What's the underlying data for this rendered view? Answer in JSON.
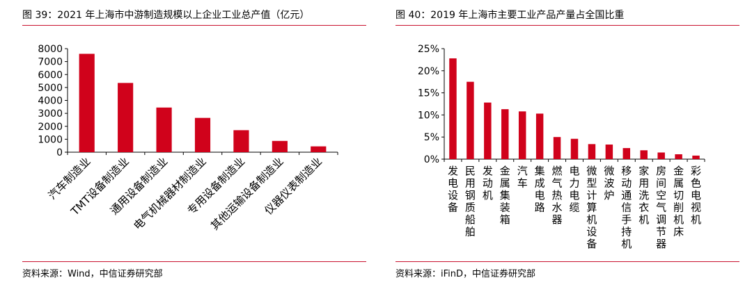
{
  "colors": {
    "bar": "#d0021b",
    "rule": "#c8102e",
    "axis": "#000000"
  },
  "figures": [
    {
      "title": "图 39：2021 年上海市中游制造规模以上企业工业总产值（亿元）",
      "source": "资料来源：Wind，中信证券研究部"
    },
    {
      "title": "图 40：2019 年上海市主要工业产品产量占全国比重",
      "source": "资料来源：iFinD，中信证券研究部"
    }
  ],
  "chart_data": [
    {
      "type": "bar",
      "title": "图 39：2021 年上海市中游制造规模以上企业工业总产值（亿元）",
      "categories": [
        "汽车制造业",
        "TMT设备制造业",
        "通用设备制造业",
        "电气机械器材制造业",
        "专用设备制造业",
        "其他运输设备制造业",
        "仪器仪表制造业"
      ],
      "values": [
        7600,
        5350,
        3450,
        2650,
        1700,
        870,
        450
      ],
      "yticks": [
        "0",
        "1000",
        "2000",
        "3000",
        "4000",
        "5000",
        "6000",
        "7000",
        "8000"
      ],
      "ylim": [
        0,
        8000
      ],
      "label_style": "rotated-45",
      "grid": false,
      "legend": "none"
    },
    {
      "type": "bar",
      "title": "图 40：2019 年上海市主要工业产品产量占全国比重",
      "categories": [
        "发电设备",
        "民用钢质船舶",
        "发动机",
        "金属集装箱",
        "汽车",
        "集成电路",
        "燃气热水器",
        "电力电缆",
        "微型计算机设备",
        "微波炉",
        "移动通信手持机",
        "家用洗衣机",
        "房间空气调节器",
        "金属切削机床",
        "彩色电视机"
      ],
      "values": [
        22.8,
        17.5,
        12.8,
        11.3,
        10.8,
        10.3,
        5.0,
        4.6,
        3.4,
        3.3,
        2.5,
        2.0,
        1.5,
        1.1,
        0.8
      ],
      "yticks": [
        "0%",
        "5%",
        "10%",
        "15%",
        "20%",
        "25%"
      ],
      "ylim": [
        0,
        25
      ],
      "label_style": "vertical",
      "grid": false,
      "legend": "none"
    }
  ]
}
